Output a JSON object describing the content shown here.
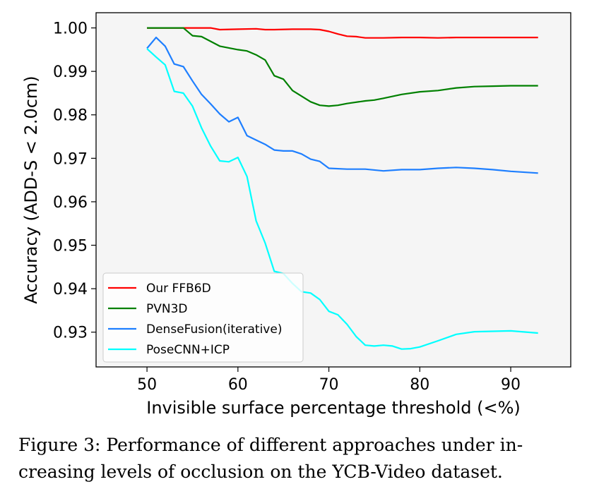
{
  "chart_data": {
    "type": "line",
    "xlabel": "Invisible surface percentage threshold (<%)",
    "ylabel": "Accuracy (ADD-S < 2.0cm)",
    "xlim": [
      44.4,
      96.6
    ],
    "ylim": [
      0.922,
      1.0035
    ],
    "xticks": [
      50,
      60,
      70,
      80,
      90
    ],
    "yticks": [
      0.93,
      0.94,
      0.95,
      0.96,
      0.97,
      0.98,
      0.99,
      1.0
    ],
    "ytick_labels": [
      "0.93",
      "0.94",
      "0.95",
      "0.96",
      "0.97",
      "0.98",
      "0.99",
      "1.00"
    ],
    "grid": false,
    "legend_position": "lower-left",
    "series": [
      {
        "name": "Our FFB6D",
        "color": "#ff0000",
        "x": [
          50,
          52,
          54,
          56,
          57,
          58,
          60,
          62,
          63,
          64,
          66,
          68,
          69,
          70,
          71,
          72,
          73,
          74,
          76,
          78,
          80,
          82,
          84,
          86,
          88,
          90,
          93
        ],
        "y": [
          1.0,
          1.0,
          1.0,
          1.0,
          1.0,
          0.9996,
          0.9997,
          0.9998,
          0.9996,
          0.9996,
          0.9997,
          0.9997,
          0.9996,
          0.9992,
          0.9986,
          0.9981,
          0.998,
          0.9977,
          0.9977,
          0.9978,
          0.9978,
          0.9977,
          0.9978,
          0.9978,
          0.9978,
          0.9978,
          0.9978
        ]
      },
      {
        "name": "PVN3D",
        "color": "#008000",
        "x": [
          50,
          52,
          54,
          55,
          56,
          58,
          60,
          61,
          62,
          63,
          64,
          65,
          66,
          68,
          69,
          70,
          71,
          72,
          74,
          75,
          76,
          78,
          80,
          82,
          84,
          86,
          88,
          90,
          93
        ],
        "y": [
          1.0,
          1.0,
          1.0,
          0.9982,
          0.998,
          0.9958,
          0.995,
          0.9947,
          0.9938,
          0.9926,
          0.989,
          0.9882,
          0.9856,
          0.983,
          0.9822,
          0.982,
          0.9822,
          0.9826,
          0.9832,
          0.9834,
          0.9838,
          0.9847,
          0.9853,
          0.9856,
          0.9862,
          0.9865,
          0.9866,
          0.9867,
          0.9867
        ]
      },
      {
        "name": "DenseFusion(iterative)",
        "color": "#1e7fff",
        "x": [
          50,
          51,
          52,
          53,
          54,
          55,
          56,
          57,
          58,
          59,
          60,
          61,
          62,
          63,
          64,
          65,
          66,
          67,
          68,
          69,
          70,
          72,
          74,
          76,
          78,
          80,
          82,
          84,
          86,
          88,
          90,
          93
        ],
        "y": [
          0.9953,
          0.9978,
          0.9958,
          0.9917,
          0.9911,
          0.9878,
          0.9847,
          0.9825,
          0.9802,
          0.9784,
          0.9794,
          0.9752,
          0.9742,
          0.9732,
          0.9719,
          0.9717,
          0.9717,
          0.971,
          0.9698,
          0.9693,
          0.9677,
          0.9675,
          0.9675,
          0.9671,
          0.9674,
          0.9674,
          0.9677,
          0.9679,
          0.9677,
          0.9674,
          0.967,
          0.9666
        ]
      },
      {
        "name": "PoseCNN+ICP",
        "color": "#00ffff",
        "x": [
          50,
          51,
          52,
          53,
          54,
          55,
          56,
          57,
          58,
          59,
          60,
          61,
          62,
          63,
          64,
          65,
          66,
          67,
          68,
          69,
          70,
          71,
          72,
          73,
          74,
          75,
          76,
          77,
          78,
          79,
          80,
          82,
          84,
          86,
          88,
          90,
          93
        ],
        "y": [
          0.9952,
          0.9933,
          0.9915,
          0.9854,
          0.985,
          0.982,
          0.977,
          0.9728,
          0.9694,
          0.9692,
          0.9702,
          0.9658,
          0.9556,
          0.9505,
          0.944,
          0.9435,
          0.9412,
          0.9393,
          0.939,
          0.9375,
          0.9348,
          0.934,
          0.9318,
          0.929,
          0.927,
          0.9268,
          0.927,
          0.9268,
          0.9261,
          0.9262,
          0.9266,
          0.928,
          0.9295,
          0.9301,
          0.9302,
          0.9303,
          0.9298
        ]
      }
    ]
  },
  "caption": {
    "line1": "Figure 3:  Performance of different approaches under in-",
    "line2": "creasing levels of occlusion on the YCB-Video dataset."
  }
}
